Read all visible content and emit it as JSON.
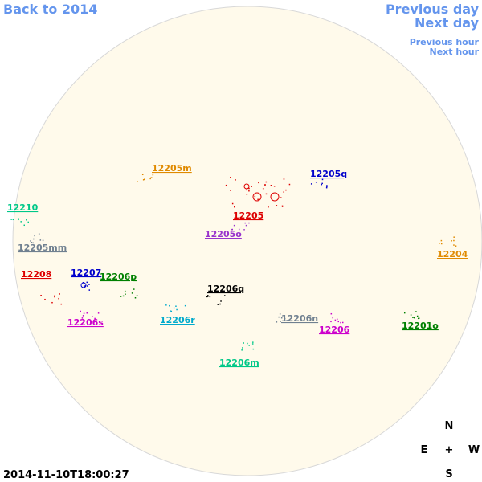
{
  "nav": {
    "back": "Back to 2014",
    "previous_day": "Previous day",
    "next_day": "Next day",
    "previous_hour": "Previous hour",
    "next_hour": "Next hour"
  },
  "timestamp": "2014-11-10T18:00:27",
  "compass": {
    "north": "N",
    "east": "E",
    "center": "+",
    "west": "W",
    "south": "S"
  },
  "regions": [
    {
      "label": "12205m",
      "color": "#e08a00"
    },
    {
      "label": "12205q",
      "color": "#0000cc"
    },
    {
      "label": "12210",
      "color": "#00c888"
    },
    {
      "label": "12205",
      "color": "#dd0000"
    },
    {
      "label": "12205o",
      "color": "#9933cc"
    },
    {
      "label": "12205mm",
      "color": "#708090"
    },
    {
      "label": "12204",
      "color": "#e08a00"
    },
    {
      "label": "12208",
      "color": "#dd0000"
    },
    {
      "label": "12207",
      "color": "#0000cc"
    },
    {
      "label": "12206p",
      "color": "#008000"
    },
    {
      "label": "12206q",
      "color": "#000000"
    },
    {
      "label": "12206s",
      "color": "#cc00cc"
    },
    {
      "label": "12206r",
      "color": "#00aacc"
    },
    {
      "label": "12206n",
      "color": "#708090"
    },
    {
      "label": "12206",
      "color": "#cc00cc"
    },
    {
      "label": "12201o",
      "color": "#008000"
    },
    {
      "label": "12206m",
      "color": "#00c888"
    }
  ]
}
